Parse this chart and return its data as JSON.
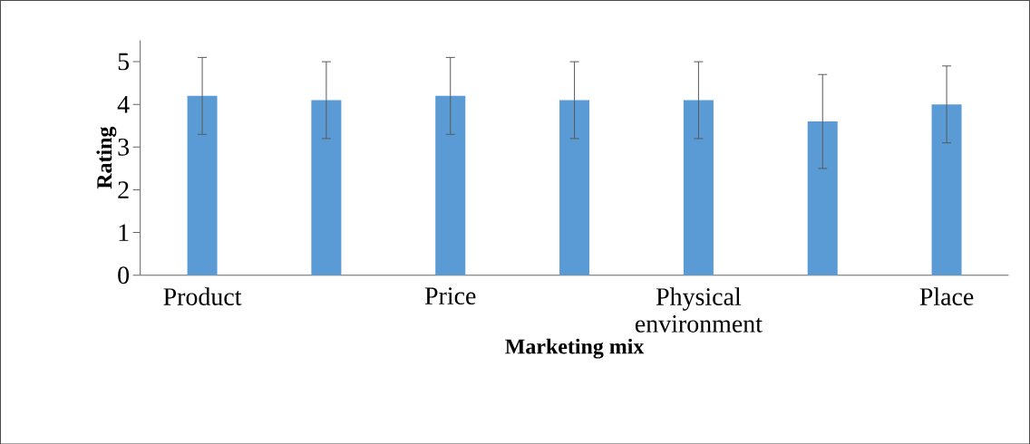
{
  "chart_data": {
    "type": "bar",
    "xlabel": "Marketing mix",
    "ylabel": "Rating",
    "categories": [
      "Product",
      null,
      "Price",
      null,
      "Physical environment",
      null,
      "Place"
    ],
    "values": [
      4.2,
      4.1,
      4.2,
      4.1,
      4.1,
      3.6,
      4.0
    ],
    "errors": [
      0.9,
      0.9,
      0.9,
      0.9,
      0.9,
      1.1,
      0.9
    ],
    "color": "#5b9bd5",
    "ylim": [
      0,
      5.5
    ],
    "yticks": [
      0,
      1,
      2,
      3,
      4,
      5
    ],
    "grid": false
  }
}
